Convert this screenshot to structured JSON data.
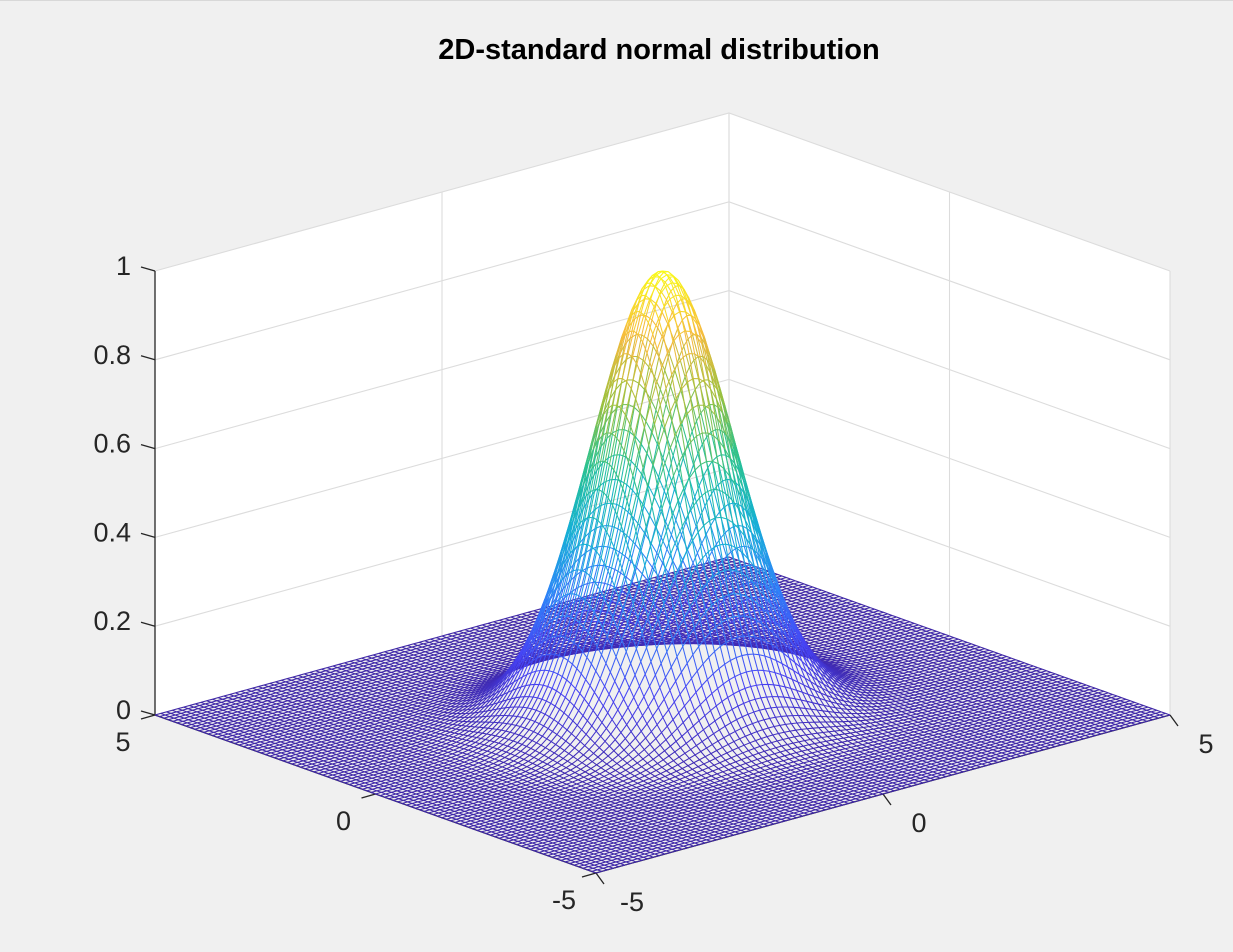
{
  "figure": {
    "background": "#f0f0f0"
  },
  "chart_data": {
    "type": "surface-mesh",
    "title": "2D-standard normal distribution",
    "xlabel": "",
    "ylabel": "",
    "zlabel": "",
    "function": "z = exp(-(x^2 + y^2) / 2)",
    "peak": {
      "x": 0,
      "y": 0,
      "z": 1.0
    },
    "x_range": [
      -5,
      5
    ],
    "y_range": [
      -5,
      5
    ],
    "z_range": [
      0,
      1
    ],
    "grid_points_per_axis": 101,
    "x_ticks": [
      -5,
      0,
      5
    ],
    "y_ticks": [
      -5,
      0,
      5
    ],
    "z_ticks": [
      0,
      0.2,
      0.4,
      0.6,
      0.8,
      1
    ],
    "x_tick_labels": [
      "-5",
      "0",
      "5"
    ],
    "y_tick_labels": [
      "-5",
      "0",
      "5"
    ],
    "z_tick_labels": [
      "0",
      "0.2",
      "0.4",
      "0.6",
      "0.8",
      "1"
    ],
    "colormap": "parula",
    "colormap_stops": [
      "#3e26a8",
      "#4743f5",
      "#2e87f7",
      "#15b1d4",
      "#2ac28f",
      "#9dc13f",
      "#f6ba3e",
      "#f9fb15"
    ],
    "grid": true,
    "view": "3d-default",
    "axes_background": "#ffffff",
    "grid_color": "#dcdcdc",
    "axis_color": "#262626"
  }
}
